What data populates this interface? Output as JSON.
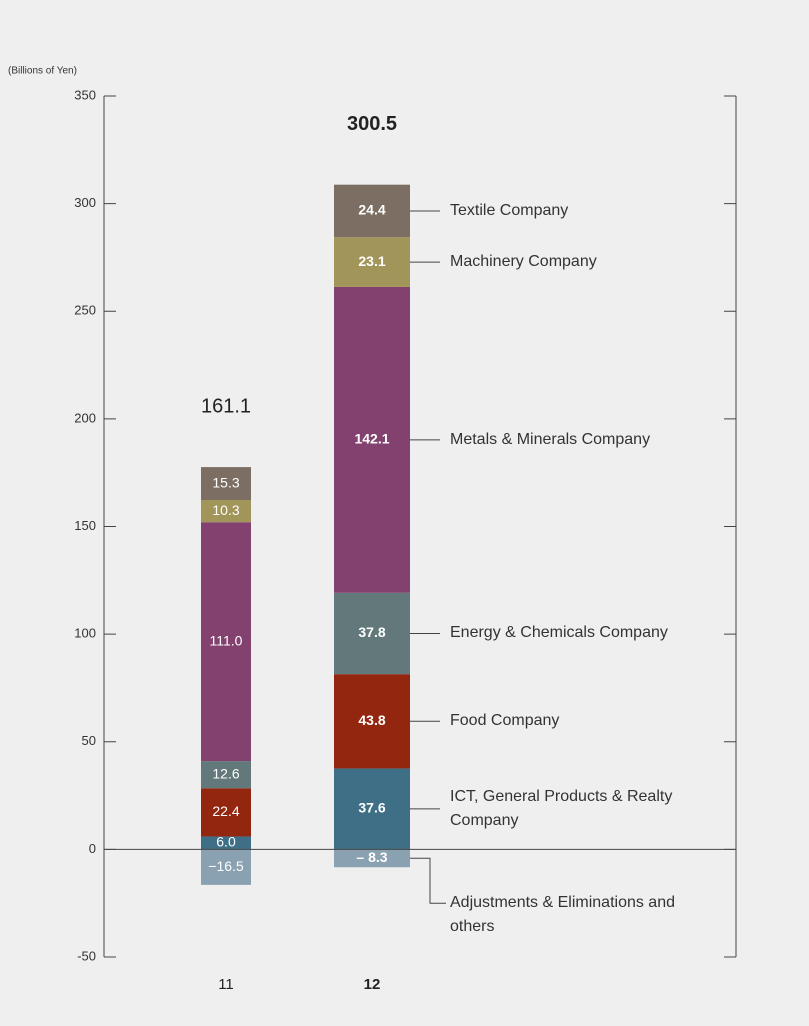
{
  "chart_data": {
    "type": "stacked_bar",
    "y_axis_label": "(Billions of Yen)",
    "categories": [
      "11",
      "12"
    ],
    "ylim": [
      -50,
      350
    ],
    "yticks": [
      -50,
      0,
      50,
      100,
      150,
      200,
      250,
      300,
      350
    ],
    "totals": [
      161.1,
      300.5
    ],
    "series": [
      {
        "name": "ICT, General Products & Realty Company",
        "color": "#3f6f86",
        "values": [
          6.0,
          37.6
        ],
        "value_labels": [
          "6.0",
          "37.6"
        ]
      },
      {
        "name": "Food Company",
        "color": "#93260f",
        "values": [
          22.4,
          43.8
        ],
        "value_labels": [
          "22.4",
          "43.8"
        ]
      },
      {
        "name": "Energy & Chemicals Company",
        "color": "#62787a",
        "values": [
          12.6,
          37.8
        ],
        "value_labels": [
          "12.6",
          "37.8"
        ]
      },
      {
        "name": "Metals & Minerals Company",
        "color": "#83416f",
        "values": [
          111.0,
          142.1
        ],
        "value_labels": [
          "111.0",
          "142.1"
        ]
      },
      {
        "name": "Machinery Company",
        "color": "#a1955a",
        "values": [
          10.3,
          23.1
        ],
        "value_labels": [
          "10.3",
          "23.1"
        ]
      },
      {
        "name": "Textile Company",
        "color": "#7c6e62",
        "values": [
          15.3,
          24.4
        ],
        "value_labels": [
          "15.3",
          "24.4"
        ]
      },
      {
        "name": "Adjustments & Eliminations and others",
        "color": "#8aa1b1",
        "values": [
          -16.5,
          -8.3
        ],
        "value_labels": [
          "−16.5",
          "– 8.3"
        ]
      }
    ]
  }
}
